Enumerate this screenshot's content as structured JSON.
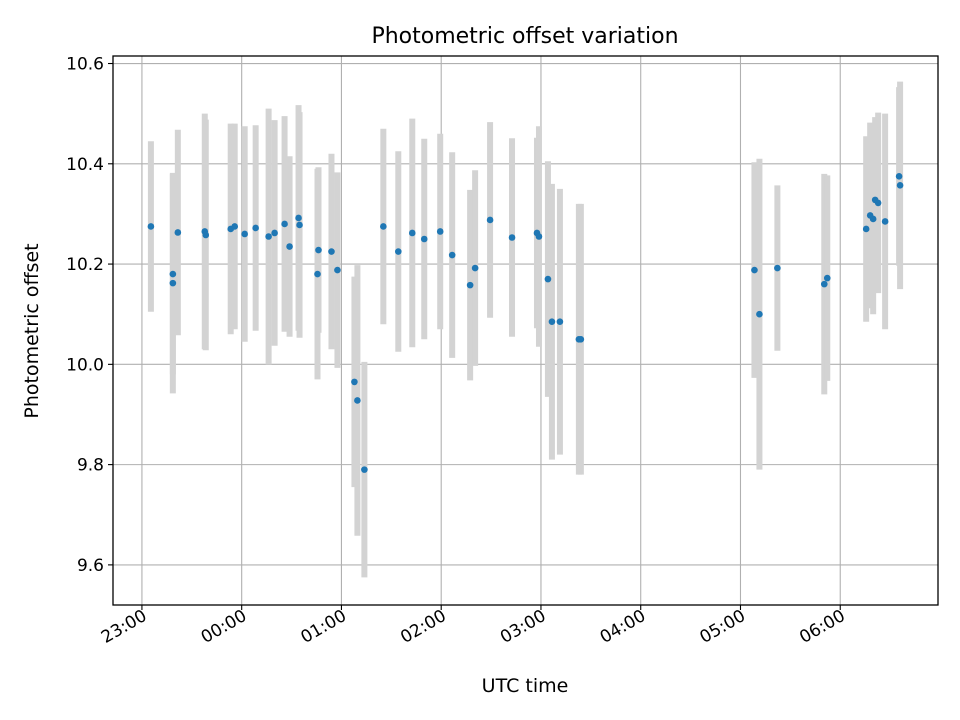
{
  "chart_data": {
    "type": "scatter",
    "title": "Photometric offset variation",
    "xlabel": "UTC time",
    "ylabel": "Photometric offset",
    "x_ticks": [
      "23:00",
      "00:00",
      "01:00",
      "02:00",
      "03:00",
      "04:00",
      "05:00",
      "06:00"
    ],
    "x_tick_hours": [
      0,
      1,
      2,
      3,
      4,
      5,
      6,
      7
    ],
    "xlim_hours": [
      -0.29,
      7.98
    ],
    "y_ticks": [
      "9.6",
      "9.8",
      "10.0",
      "10.2",
      "10.4",
      "10.6"
    ],
    "y_tick_values": [
      9.6,
      9.8,
      10.0,
      10.2,
      10.4,
      10.6
    ],
    "ylim": [
      9.52,
      10.615
    ],
    "grid": true,
    "colors": {
      "points": "#1f77b4",
      "errorbars": "#d3d3d3",
      "grid": "#b0b0b0"
    },
    "series": [
      {
        "x_hours": [
          0.09,
          0.31,
          0.31,
          0.36,
          0.63,
          0.64,
          0.89,
          0.93,
          1.03,
          1.14,
          1.27,
          1.33,
          1.43,
          1.48,
          1.57,
          1.58,
          1.76,
          1.77,
          1.9,
          1.96,
          2.13,
          2.16,
          2.23,
          2.42,
          2.57,
          2.71,
          2.83,
          2.99,
          3.11,
          3.29,
          3.34,
          3.49,
          3.71,
          3.96,
          3.98,
          4.07,
          4.11,
          4.19,
          4.38,
          4.4,
          6.14,
          6.19,
          6.37,
          6.84,
          6.87,
          7.26,
          7.3,
          7.33,
          7.35,
          7.38,
          7.45,
          7.59,
          7.6
        ],
        "y": [
          10.275,
          10.18,
          10.162,
          10.263,
          10.265,
          10.258,
          10.27,
          10.275,
          10.26,
          10.272,
          10.255,
          10.262,
          10.28,
          10.235,
          10.292,
          10.278,
          10.18,
          10.228,
          10.225,
          10.188,
          9.965,
          9.928,
          9.79,
          10.275,
          10.225,
          10.262,
          10.25,
          10.265,
          10.218,
          10.158,
          10.192,
          10.288,
          10.253,
          10.262,
          10.255,
          10.17,
          10.085,
          10.085,
          10.05,
          10.05,
          10.188,
          10.1,
          10.192,
          10.16,
          10.172,
          10.27,
          10.297,
          10.29,
          10.328,
          10.322,
          10.285,
          10.375,
          10.357
        ],
        "yerr": [
          0.17,
          0.2,
          0.22,
          0.205,
          0.235,
          0.23,
          0.21,
          0.205,
          0.215,
          0.205,
          0.255,
          0.225,
          0.215,
          0.18,
          0.225,
          0.225,
          0.21,
          0.165,
          0.195,
          0.195,
          0.21,
          0.27,
          0.215,
          0.195,
          0.2,
          0.228,
          0.2,
          0.195,
          0.205,
          0.19,
          0.195,
          0.195,
          0.198,
          0.19,
          0.22,
          0.235,
          0.275,
          0.265,
          0.27,
          0.27,
          0.215,
          0.31,
          0.165,
          0.22,
          0.205,
          0.185,
          0.185,
          0.19,
          0.165,
          0.18,
          0.215,
          0.178,
          0.207
        ]
      }
    ]
  }
}
